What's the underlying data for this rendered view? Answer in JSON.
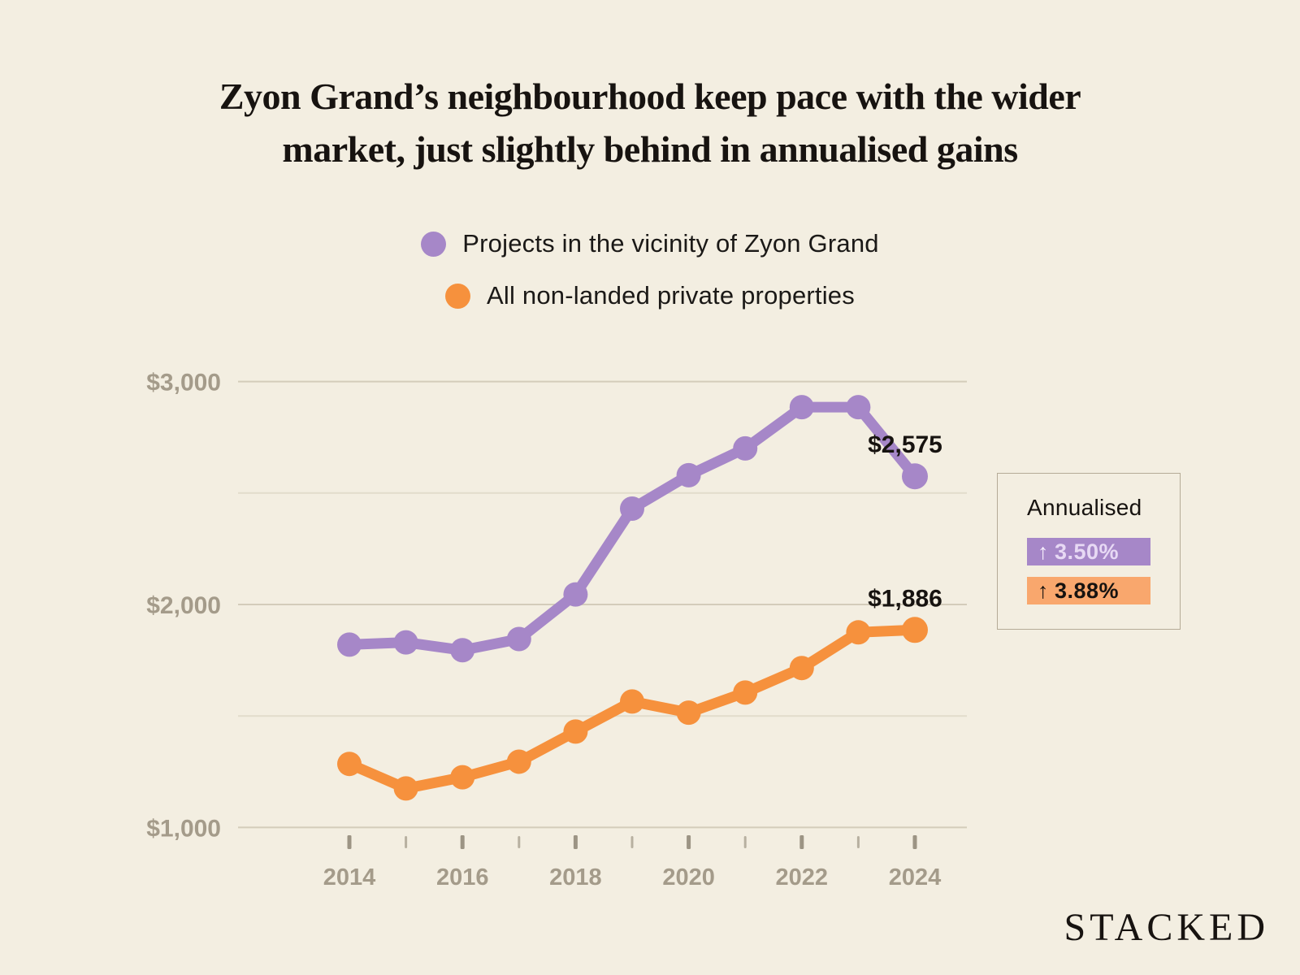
{
  "title": {
    "full": "Zyon Grand’s neighbourhood keep pace with the wider market, just slightly behind in annualised gains",
    "line1": "Zyon Grand’s neighbourhood keep pace with the wider",
    "line2": "market, just slightly behind in annualised gains"
  },
  "legend": {
    "items": [
      {
        "label": "Projects in the vicinity of Zyon Grand",
        "color": "#a687c8"
      },
      {
        "label": "All non-landed private properties",
        "color": "#f6913d"
      }
    ]
  },
  "chart_data": {
    "type": "line",
    "x": [
      2014,
      2015,
      2016,
      2017,
      2018,
      2019,
      2020,
      2021,
      2022,
      2023,
      2024
    ],
    "x_tick_labels": [
      "2014",
      "",
      "2016",
      "",
      "2018",
      "",
      "2020",
      "",
      "2022",
      "",
      "2024"
    ],
    "series": [
      {
        "name": "Projects in the vicinity of Zyon Grand",
        "color": "#a687c8",
        "values": [
          1820,
          1830,
          1795,
          1845,
          2045,
          2430,
          2580,
          2700,
          2885,
          2885,
          2575
        ],
        "end_label": "$2,575"
      },
      {
        "name": "All non-landed private properties",
        "color": "#f6913d",
        "values": [
          1285,
          1175,
          1225,
          1295,
          1430,
          1565,
          1515,
          1605,
          1715,
          1875,
          1886
        ],
        "end_label": "$1,886"
      }
    ],
    "y_ticks": [
      {
        "value": 1000,
        "label": "$1,000"
      },
      {
        "value": 1500,
        "label": ""
      },
      {
        "value": 2000,
        "label": "$2,000"
      },
      {
        "value": 2500,
        "label": ""
      },
      {
        "value": 3000,
        "label": "$3,000"
      }
    ],
    "ylim": [
      1000,
      3000
    ],
    "grid": true,
    "legend_position": "top"
  },
  "annualised": {
    "title": "Annualised",
    "entries": [
      {
        "arrow": "↑",
        "value": "3.50%",
        "bg": "#a687c8",
        "text_color": "#e7d9f4",
        "arrow_color": "#f7f0fd"
      },
      {
        "arrow": "↑",
        "value": "3.88%",
        "bg": "#f9a76d",
        "text_color": "#171310",
        "arrow_color": "#171310"
      }
    ]
  },
  "brand": "STACKED",
  "colors": {
    "background": "#f3eee1",
    "grid_labeled": "#d3ccba",
    "grid_unlabeled": "#e2dccb",
    "axis_text": "#a49b8a",
    "tick_major": "#9c9484",
    "tick_minor": "#b7b0a0",
    "data_label": "#171310",
    "box_border": "#b5ab97"
  }
}
